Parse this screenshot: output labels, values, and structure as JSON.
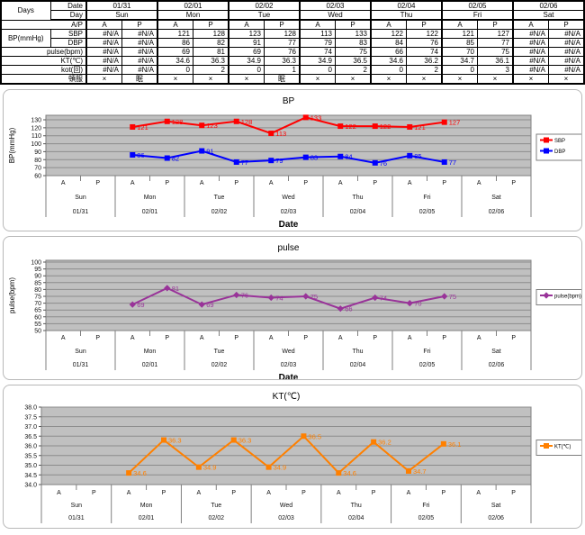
{
  "table": {
    "corner": "Days",
    "labels": {
      "date": "Date",
      "day": "Day",
      "ap": "A/P",
      "bp_group": "BP(mmHg)",
      "sbp": "SBP",
      "dbp": "DBP",
      "pulse": "pulse(bpm)",
      "kt": "KT(℃)",
      "kot": "kot(回)",
      "tonpuku": "頓服"
    },
    "ap": [
      "A",
      "P"
    ],
    "days": [
      {
        "date": "01/31",
        "day": "Sun"
      },
      {
        "date": "02/01",
        "day": "Mon"
      },
      {
        "date": "02/02",
        "day": "Tue"
      },
      {
        "date": "02/03",
        "day": "Wed"
      },
      {
        "date": "02/04",
        "day": "Thu"
      },
      {
        "date": "02/05",
        "day": "Fri"
      },
      {
        "date": "02/06",
        "day": "Sat"
      }
    ],
    "na_text": "#N/A",
    "rows": {
      "sbp": [
        "#N/A",
        "#N/A",
        "121",
        "128",
        "123",
        "128",
        "113",
        "133",
        "122",
        "122",
        "121",
        "127",
        "#N/A",
        "#N/A"
      ],
      "dbp": [
        "#N/A",
        "#N/A",
        "86",
        "82",
        "91",
        "77",
        "79",
        "83",
        "84",
        "76",
        "85",
        "77",
        "#N/A",
        "#N/A"
      ],
      "pulse": [
        "#N/A",
        "#N/A",
        "69",
        "81",
        "69",
        "76",
        "74",
        "75",
        "66",
        "74",
        "70",
        "75",
        "#N/A",
        "#N/A"
      ],
      "kt": [
        "#N/A",
        "#N/A",
        "34.6",
        "36.3",
        "34.9",
        "36.3",
        "34.9",
        "36.5",
        "34.6",
        "36.2",
        "34.7",
        "36.1",
        "#N/A",
        "#N/A"
      ],
      "kot": [
        "#N/A",
        "#N/A",
        "0",
        "2",
        "0",
        "1",
        "0",
        "2",
        "0",
        "2",
        "0",
        "3",
        "#N/A",
        "#N/A"
      ],
      "tonpuku": [
        "×",
        "眠",
        "×",
        "×",
        "×",
        "眠",
        "×",
        "×",
        "×",
        "×",
        "×",
        "×",
        "×",
        "×"
      ]
    }
  },
  "chart_data": [
    {
      "type": "line",
      "title": "BP",
      "ylabel": "BP(mmHg)",
      "xlabel": "Date",
      "ylim": [
        60,
        130
      ],
      "ytick_step": 10,
      "ytick_decimals": 0,
      "label_decimals": 0,
      "grid": true,
      "plot_bg": "#c0c0c0",
      "legend_position": "right",
      "categories": {
        "sub": [
          "A",
          "P"
        ],
        "days": [
          {
            "date": "01/31",
            "day": "Sun"
          },
          {
            "date": "02/01",
            "day": "Mon"
          },
          {
            "date": "02/02",
            "day": "Tue"
          },
          {
            "date": "02/03",
            "day": "Wed"
          },
          {
            "date": "02/04",
            "day": "Thu"
          },
          {
            "date": "02/05",
            "day": "Fri"
          },
          {
            "date": "02/06",
            "day": "Sat"
          }
        ]
      },
      "series": [
        {
          "name": "SBP",
          "color": "#ff0000",
          "marker": "square",
          "values": [
            null,
            null,
            121,
            128,
            123,
            128,
            113,
            133,
            122,
            122,
            121,
            127,
            null,
            null
          ]
        },
        {
          "name": "DBP",
          "color": "#0000ff",
          "marker": "square",
          "values": [
            null,
            null,
            86,
            82,
            91,
            77,
            79,
            83,
            84,
            76,
            85,
            77,
            null,
            null
          ]
        }
      ]
    },
    {
      "type": "line",
      "title": "pulse",
      "ylabel": "pulse(bpm)",
      "xlabel": "Date",
      "ylim": [
        50,
        100
      ],
      "ytick_step": 5,
      "ytick_decimals": 0,
      "label_decimals": 0,
      "grid": true,
      "plot_bg": "#c0c0c0",
      "legend_position": "right",
      "categories": {
        "sub": [
          "A",
          "P"
        ],
        "days": [
          {
            "date": "01/31",
            "day": "Sun"
          },
          {
            "date": "02/01",
            "day": "Mon"
          },
          {
            "date": "02/02",
            "day": "Tue"
          },
          {
            "date": "02/03",
            "day": "Wed"
          },
          {
            "date": "02/04",
            "day": "Thu"
          },
          {
            "date": "02/05",
            "day": "Fri"
          },
          {
            "date": "02/06",
            "day": "Sat"
          }
        ]
      },
      "series": [
        {
          "name": "pulse(bpm)",
          "color": "#993399",
          "marker": "diamond",
          "values": [
            null,
            null,
            69,
            81,
            69,
            76,
            74,
            75,
            66,
            74,
            70,
            75,
            null,
            null
          ]
        }
      ]
    },
    {
      "type": "line",
      "title": "KT(℃)",
      "ylabel": "",
      "xlabel": "",
      "ylim": [
        34.0,
        38.0
      ],
      "ytick_step": 0.5,
      "ytick_decimals": 1,
      "label_decimals": 1,
      "grid": true,
      "plot_bg": "#c0c0c0",
      "legend_position": "right",
      "categories": {
        "sub": [
          "A",
          "P"
        ],
        "days": [
          {
            "date": "01/31",
            "day": "Sun"
          },
          {
            "date": "02/01",
            "day": "Mon"
          },
          {
            "date": "02/02",
            "day": "Tue"
          },
          {
            "date": "02/03",
            "day": "Wed"
          },
          {
            "date": "02/04",
            "day": "Thu"
          },
          {
            "date": "02/05",
            "day": "Fri"
          },
          {
            "date": "02/06",
            "day": "Sat"
          }
        ]
      },
      "series": [
        {
          "name": "KT(℃)",
          "color": "#ff8000",
          "marker": "square",
          "values": [
            null,
            null,
            34.6,
            36.3,
            34.9,
            36.3,
            34.9,
            36.5,
            34.6,
            36.2,
            34.7,
            36.1,
            null,
            null
          ]
        }
      ]
    }
  ]
}
